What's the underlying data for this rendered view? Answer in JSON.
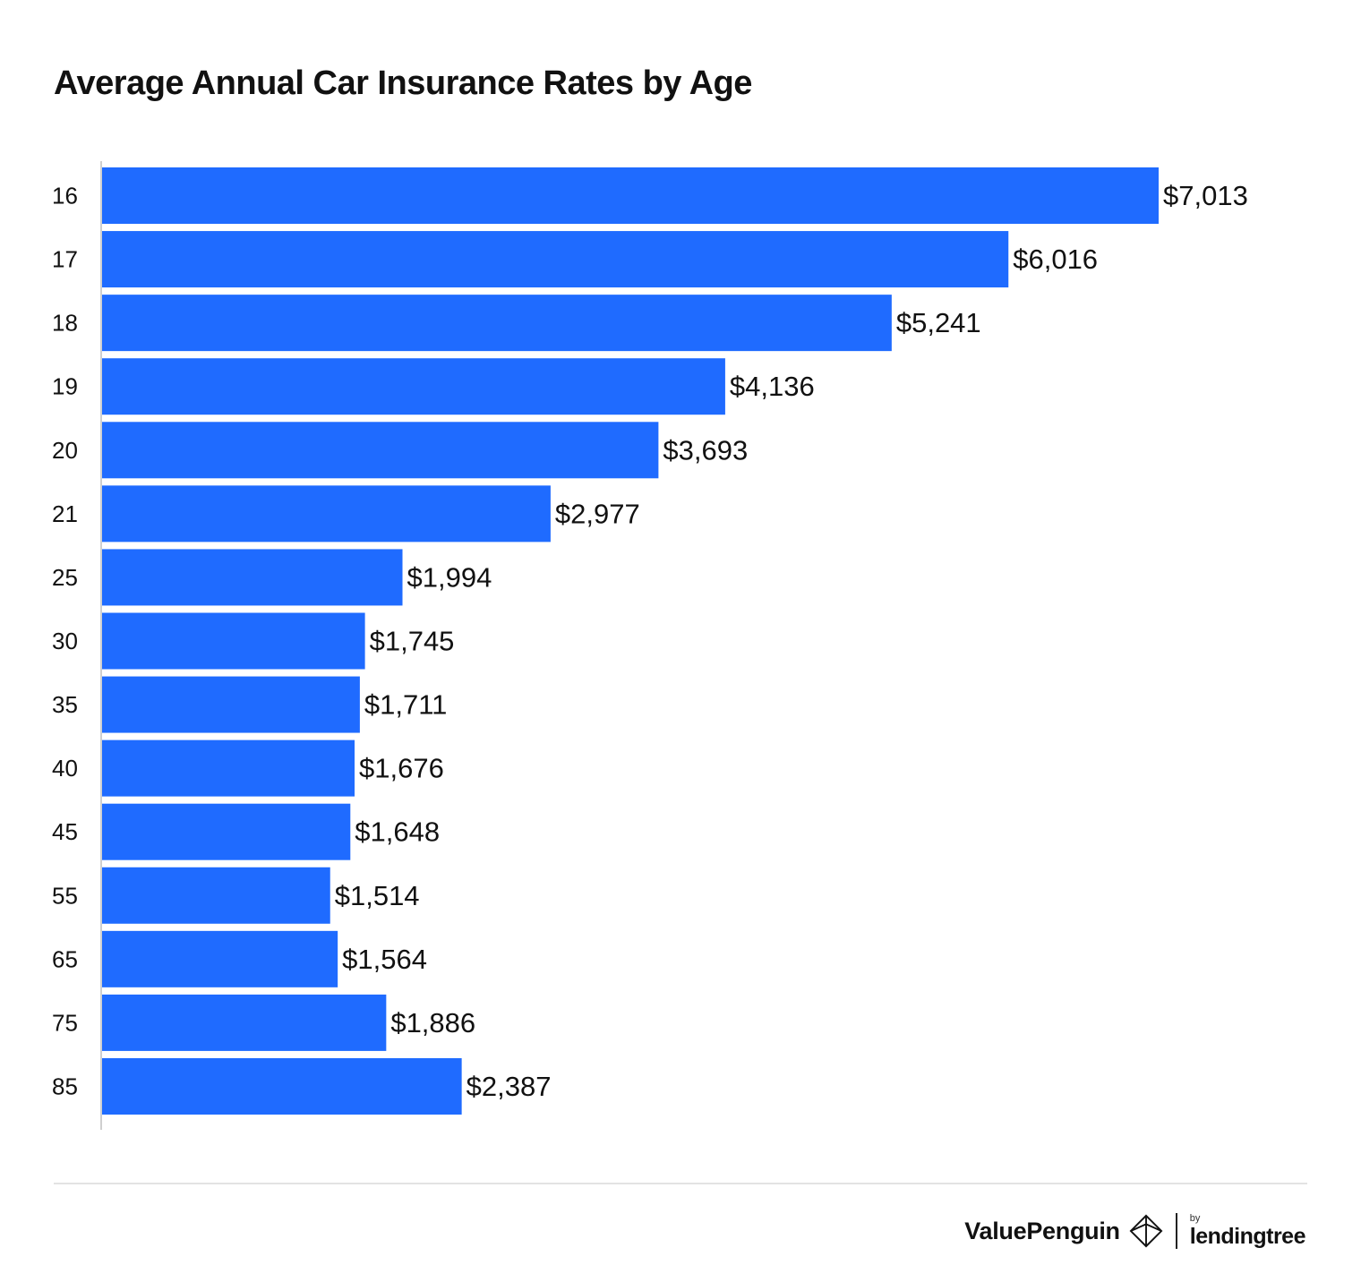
{
  "title": "Average Annual Car Insurance Rates by Age",
  "colors": {
    "bar": "#1f6bff",
    "axis": "#cfcfcf",
    "text": "#111111"
  },
  "chart_data": {
    "type": "bar",
    "orientation": "horizontal",
    "title": "Average Annual Car Insurance Rates by Age",
    "xlabel": "",
    "ylabel": "",
    "categories": [
      "16",
      "17",
      "18",
      "19",
      "20",
      "21",
      "25",
      "30",
      "35",
      "40",
      "45",
      "55",
      "65",
      "75",
      "85"
    ],
    "values": [
      7013,
      6016,
      5241,
      4136,
      3693,
      2977,
      1994,
      1745,
      1711,
      1676,
      1648,
      1514,
      1564,
      1886,
      2387
    ],
    "value_labels": [
      "$7,013",
      "$6,016",
      "$5,241",
      "$4,136",
      "$3,693",
      "$2,977",
      "$1,994",
      "$1,745",
      "$1,711",
      "$1,676",
      "$1,648",
      "$1,514",
      "$1,564",
      "$1,886",
      "$2,387"
    ],
    "xlim": [
      0,
      7013
    ],
    "grid": false,
    "legend": "none"
  },
  "footer": {
    "brand": "ValuePenguin",
    "partner_prefix": "by",
    "partner": "lendingtree"
  }
}
